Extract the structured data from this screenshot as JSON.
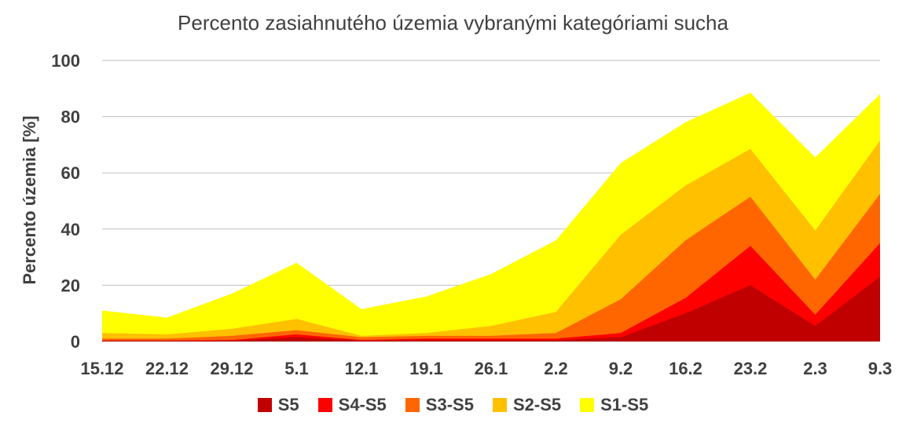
{
  "chart_data": {
    "type": "area",
    "title": "Percento zasiahnutého územia vybranými kategóriami sucha",
    "ylabel": "Percento územia  [%]",
    "xlabel": "",
    "categories": [
      "15.12",
      "22.12",
      "29.12",
      "5.1",
      "12.1",
      "19.1",
      "26.1",
      "2.2",
      "9.2",
      "16.2",
      "23.2",
      "2.3",
      "9.3"
    ],
    "ylim": [
      0,
      100
    ],
    "yticks": [
      0,
      20,
      40,
      60,
      80,
      100
    ],
    "grid": true,
    "legend_position": "bottom",
    "stacked": false,
    "series": [
      {
        "name": "S1-S5",
        "color": "#FFFF00",
        "values": [
          11,
          8.5,
          17,
          28,
          11.5,
          16,
          24,
          36,
          63.5,
          78,
          88.5,
          65.5,
          88
        ]
      },
      {
        "name": "S2-S5",
        "color": "#FFC000",
        "values": [
          3,
          2.5,
          4.5,
          8,
          2,
          3,
          5.5,
          10.5,
          38,
          55.5,
          68.5,
          39.5,
          71.5
        ]
      },
      {
        "name": "S3-S5",
        "color": "#FF6600",
        "values": [
          1,
          1,
          2,
          4,
          1.5,
          2,
          2,
          3,
          15,
          36,
          51.5,
          22,
          52.5
        ]
      },
      {
        "name": "S4-S5",
        "color": "#FF0000",
        "values": [
          0.3,
          0.3,
          0.5,
          2.5,
          0.5,
          1,
          1,
          1,
          3,
          15.5,
          34,
          9.5,
          35
        ]
      },
      {
        "name": "S5",
        "color": "#C00000",
        "values": [
          0.2,
          0.2,
          0.3,
          1.5,
          0.3,
          0.5,
          0.5,
          0.5,
          1.5,
          10,
          20,
          5.5,
          23
        ]
      }
    ],
    "legend": [
      "S5",
      "S4-S5",
      "S3-S5",
      "S2-S5",
      "S1-S5"
    ]
  }
}
